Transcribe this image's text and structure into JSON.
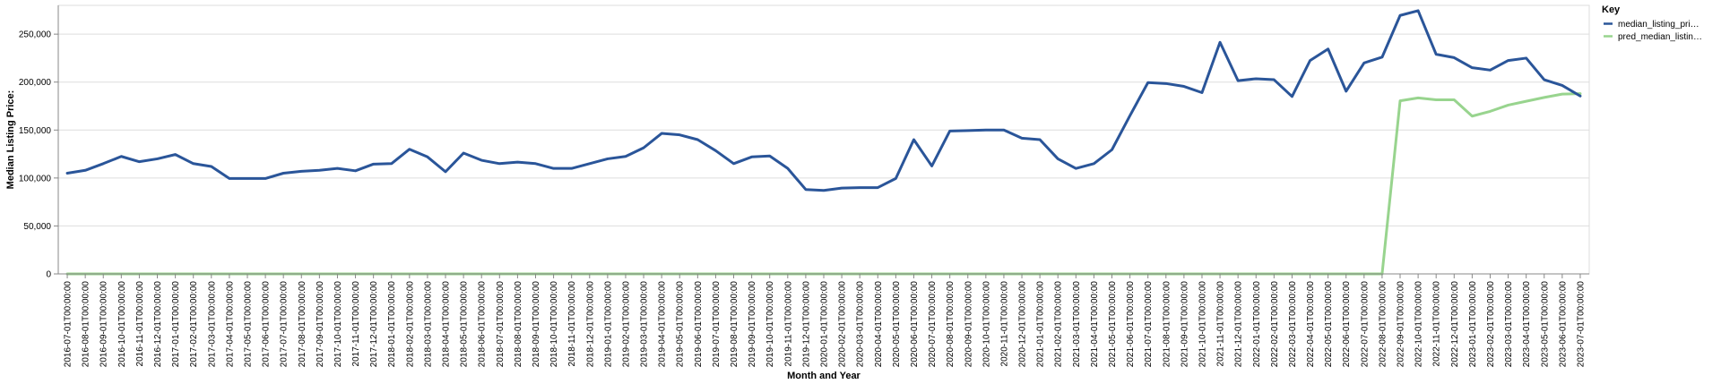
{
  "chart_data": {
    "type": "line",
    "xlabel": "Month and Year",
    "ylabel": "Median Listing Price:",
    "ylim": [
      0,
      280000
    ],
    "y_ticks": [
      0,
      50000,
      100000,
      150000,
      200000,
      250000
    ],
    "y_tick_labels": [
      "0",
      "50,000",
      "100,000",
      "150,000",
      "200,000",
      "250,000"
    ],
    "grid": true,
    "legend": {
      "title": "Key",
      "placement": "top-right",
      "entries": [
        "median_listing_pri…",
        "pred_median_listin…"
      ]
    },
    "x": [
      "2016-07-01T00:00:00",
      "2016-08-01T00:00:00",
      "2016-09-01T00:00:00",
      "2016-10-01T00:00:00",
      "2016-11-01T00:00:00",
      "2016-12-01T00:00:00",
      "2017-01-01T00:00:00",
      "2017-02-01T00:00:00",
      "2017-03-01T00:00:00",
      "2017-04-01T00:00:00",
      "2017-05-01T00:00:00",
      "2017-06-01T00:00:00",
      "2017-07-01T00:00:00",
      "2017-08-01T00:00:00",
      "2017-09-01T00:00:00",
      "2017-10-01T00:00:00",
      "2017-11-01T00:00:00",
      "2017-12-01T00:00:00",
      "2018-01-01T00:00:00",
      "2018-02-01T00:00:00",
      "2018-03-01T00:00:00",
      "2018-04-01T00:00:00",
      "2018-05-01T00:00:00",
      "2018-06-01T00:00:00",
      "2018-07-01T00:00:00",
      "2018-08-01T00:00:00",
      "2018-09-01T00:00:00",
      "2018-10-01T00:00:00",
      "2018-11-01T00:00:00",
      "2018-12-01T00:00:00",
      "2019-01-01T00:00:00",
      "2019-02-01T00:00:00",
      "2019-03-01T00:00:00",
      "2019-04-01T00:00:00",
      "2019-05-01T00:00:00",
      "2019-06-01T00:00:00",
      "2019-07-01T00:00:00",
      "2019-08-01T00:00:00",
      "2019-09-01T00:00:00",
      "2019-10-01T00:00:00",
      "2019-11-01T00:00:00",
      "2019-12-01T00:00:00",
      "2020-01-01T00:00:00",
      "2020-02-01T00:00:00",
      "2020-03-01T00:00:00",
      "2020-04-01T00:00:00",
      "2020-05-01T00:00:00",
      "2020-06-01T00:00:00",
      "2020-07-01T00:00:00",
      "2020-08-01T00:00:00",
      "2020-09-01T00:00:00",
      "2020-10-01T00:00:00",
      "2020-11-01T00:00:00",
      "2020-12-01T00:00:00",
      "2021-01-01T00:00:00",
      "2021-02-01T00:00:00",
      "2021-03-01T00:00:00",
      "2021-04-01T00:00:00",
      "2021-05-01T00:00:00",
      "2021-06-01T00:00:00",
      "2021-07-01T00:00:00",
      "2021-08-01T00:00:00",
      "2021-09-01T00:00:00",
      "2021-10-01T00:00:00",
      "2021-11-01T00:00:00",
      "2021-12-01T00:00:00",
      "2022-01-01T00:00:00",
      "2022-02-01T00:00:00",
      "2022-03-01T00:00:00",
      "2022-04-01T00:00:00",
      "2022-05-01T00:00:00",
      "2022-06-01T00:00:00",
      "2022-07-01T00:00:00",
      "2022-08-01T00:00:00",
      "2022-09-01T00:00:00",
      "2022-10-01T00:00:00",
      "2022-11-01T00:00:00",
      "2022-12-01T00:00:00",
      "2023-01-01T00:00:00",
      "2023-02-01T00:00:00",
      "2023-03-01T00:00:00",
      "2023-04-01T00:00:00",
      "2023-05-01T00:00:00",
      "2023-06-01T00:00:00",
      "2023-07-01T00:00:00"
    ],
    "series": [
      {
        "name": "median_listing_pri…",
        "color": "#2a5599",
        "values": [
          105000,
          108000,
          115000,
          122500,
          117000,
          120000,
          124500,
          115000,
          112000,
          99500,
          99500,
          99500,
          105000,
          107000,
          108000,
          110000,
          107500,
          114500,
          115000,
          130000,
          122000,
          106500,
          126000,
          118500,
          115000,
          116500,
          115000,
          110000,
          110000,
          115000,
          120000,
          122500,
          131500,
          146500,
          145000,
          140000,
          128500,
          115000,
          122000,
          123000,
          110000,
          88000,
          87000,
          89500,
          90000,
          90000,
          99500,
          140000,
          112500,
          149000,
          149500,
          150000,
          150000,
          141500,
          140000,
          120000,
          110000,
          115000,
          129500,
          165000,
          199500,
          198500,
          195500,
          189000,
          241500,
          201500,
          203500,
          202500,
          185000,
          222500,
          234500,
          190500,
          220000,
          226000,
          269500,
          274500,
          229000,
          225500,
          215000,
          212500,
          222500,
          225000,
          202500,
          196500,
          185500
        ]
      },
      {
        "name": "pred_median_listin…",
        "color": "#98d48e",
        "values": [
          0,
          0,
          0,
          0,
          0,
          0,
          0,
          0,
          0,
          0,
          0,
          0,
          0,
          0,
          0,
          0,
          0,
          0,
          0,
          0,
          0,
          0,
          0,
          0,
          0,
          0,
          0,
          0,
          0,
          0,
          0,
          0,
          0,
          0,
          0,
          0,
          0,
          0,
          0,
          0,
          0,
          0,
          0,
          0,
          0,
          0,
          0,
          0,
          0,
          0,
          0,
          0,
          0,
          0,
          0,
          0,
          0,
          0,
          0,
          0,
          0,
          0,
          0,
          0,
          0,
          0,
          0,
          0,
          0,
          0,
          0,
          0,
          0,
          0,
          180500,
          183500,
          181500,
          181500,
          164500,
          169500,
          176000,
          180000,
          184000,
          187500,
          188000
        ]
      }
    ]
  }
}
